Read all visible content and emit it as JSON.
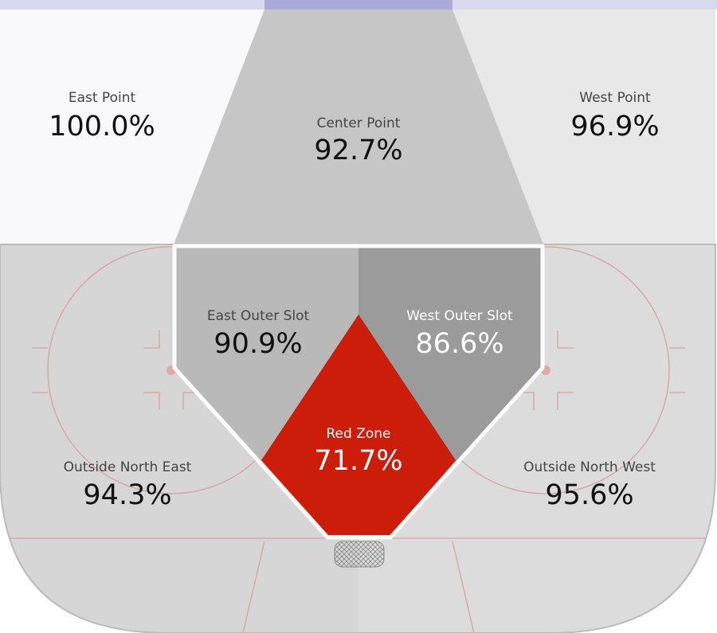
{
  "zones": [
    {
      "label": "East Point",
      "value": "100.0%"
    },
    {
      "label": "Center Point",
      "value": "92.7%"
    },
    {
      "label": "West Point",
      "value": "96.9%"
    },
    {
      "label": "East Outer Slot",
      "value": "90.9%"
    },
    {
      "label": "West Outer Slot",
      "value": "86.6%"
    },
    {
      "label": "Red Zone",
      "value": "71.7%"
    },
    {
      "label": "Outside North East",
      "value": "94.3%"
    },
    {
      "label": "Outside North West",
      "value": "95.6%"
    }
  ]
}
